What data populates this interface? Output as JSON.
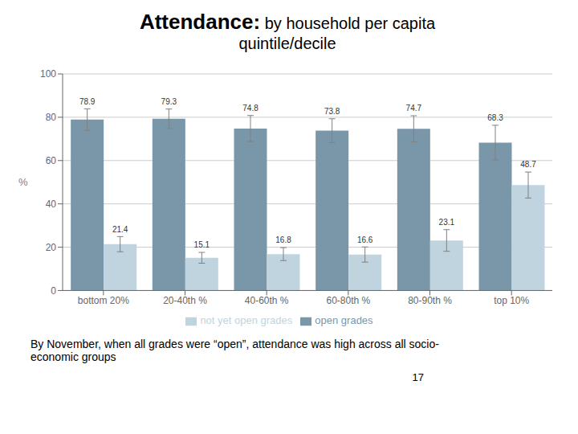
{
  "chart_data": {
    "type": "bar",
    "title": "Attendance: by household per capita",
    "subtitle": "quintile/decile",
    "categories": [
      "bottom 20%",
      "20-40th %",
      "40-60th %",
      "60-80th %",
      "80-90th %",
      "top 10%"
    ],
    "series": [
      {
        "name": "open grades",
        "color": "#7A97AA",
        "values": [
          78.9,
          79.3,
          74.8,
          73.8,
          74.7,
          68.3
        ],
        "errors": [
          5.0,
          4.5,
          6.0,
          5.5,
          6.0,
          8.0
        ]
      },
      {
        "name": "not yet open grades",
        "color": "#C0D4E0",
        "values": [
          21.4,
          15.1,
          16.8,
          16.6,
          23.1,
          48.7
        ],
        "errors": [
          3.5,
          2.5,
          3.0,
          3.5,
          5.0,
          6.0
        ]
      }
    ],
    "ylabel": "%",
    "ylim": [
      0,
      100
    ],
    "yticks": [
      0,
      20,
      40,
      60,
      80,
      100
    ],
    "grid": true,
    "legend": "bottom",
    "data_labels": true,
    "annotations": [
      "By November, when all grades were “open”, attendance was high across all socio-\neconomic groups",
      "17"
    ]
  }
}
